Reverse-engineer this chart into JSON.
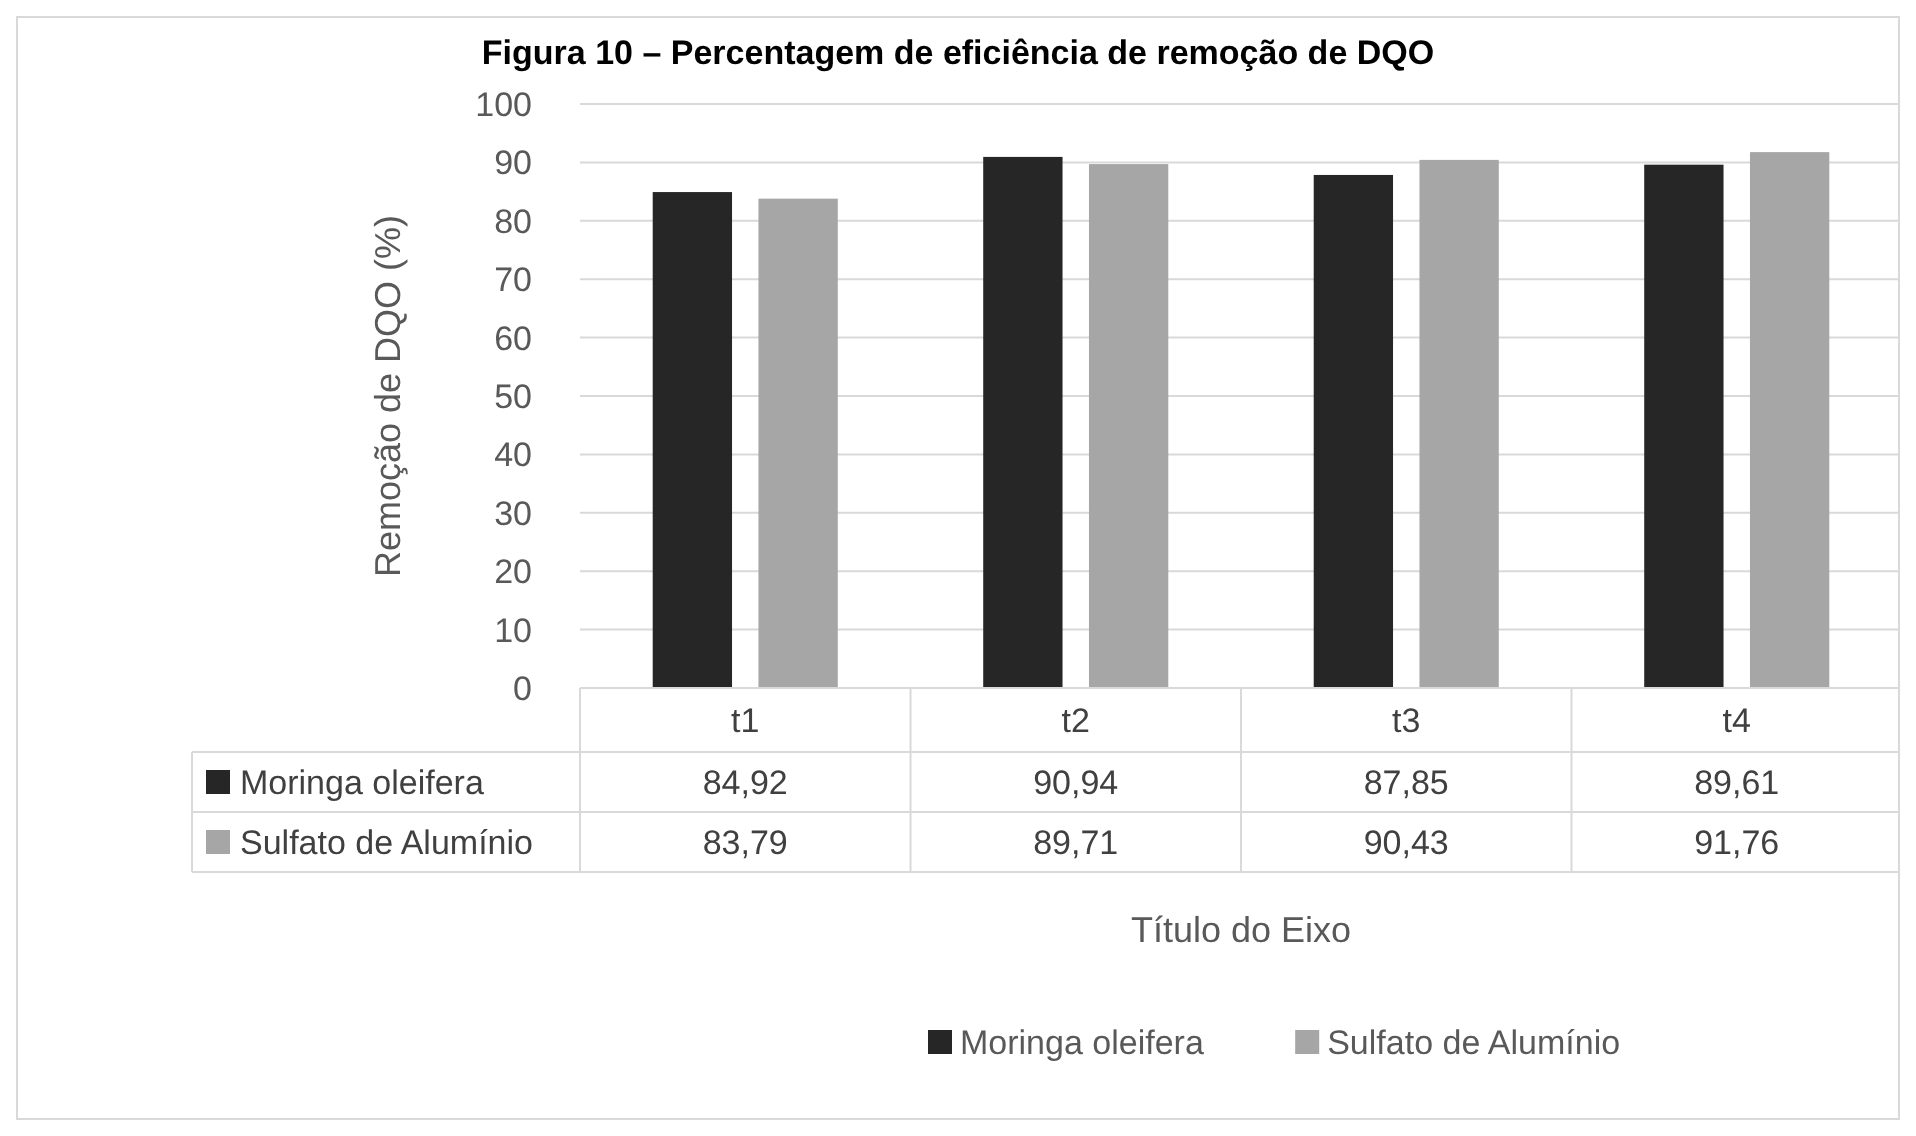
{
  "chart_data": {
    "type": "bar",
    "title": "Figura 10 – Percentagem de eficiência de remoção de DQO",
    "xlabel": "Título do Eixo",
    "ylabel": "Remoção de DQO (%)",
    "categories": [
      "t1",
      "t2",
      "t3",
      "t4"
    ],
    "series": [
      {
        "name": "Moringa oleifera",
        "color": "#262626",
        "values": [
          84.92,
          90.94,
          87.85,
          89.61
        ],
        "value_labels": [
          "84,92",
          "90,94",
          "87,85",
          "89,61"
        ]
      },
      {
        "name": "Sulfato de Alumínio",
        "color": "#a6a6a6",
        "values": [
          83.79,
          89.71,
          90.43,
          91.76
        ],
        "value_labels": [
          "83,79",
          "89,71",
          "90,43",
          "91,76"
        ]
      }
    ],
    "ylim": [
      0,
      100
    ],
    "yticks": [
      0,
      10,
      20,
      30,
      40,
      50,
      60,
      70,
      80,
      90,
      100
    ],
    "grid": "y",
    "legend": "bottom"
  }
}
